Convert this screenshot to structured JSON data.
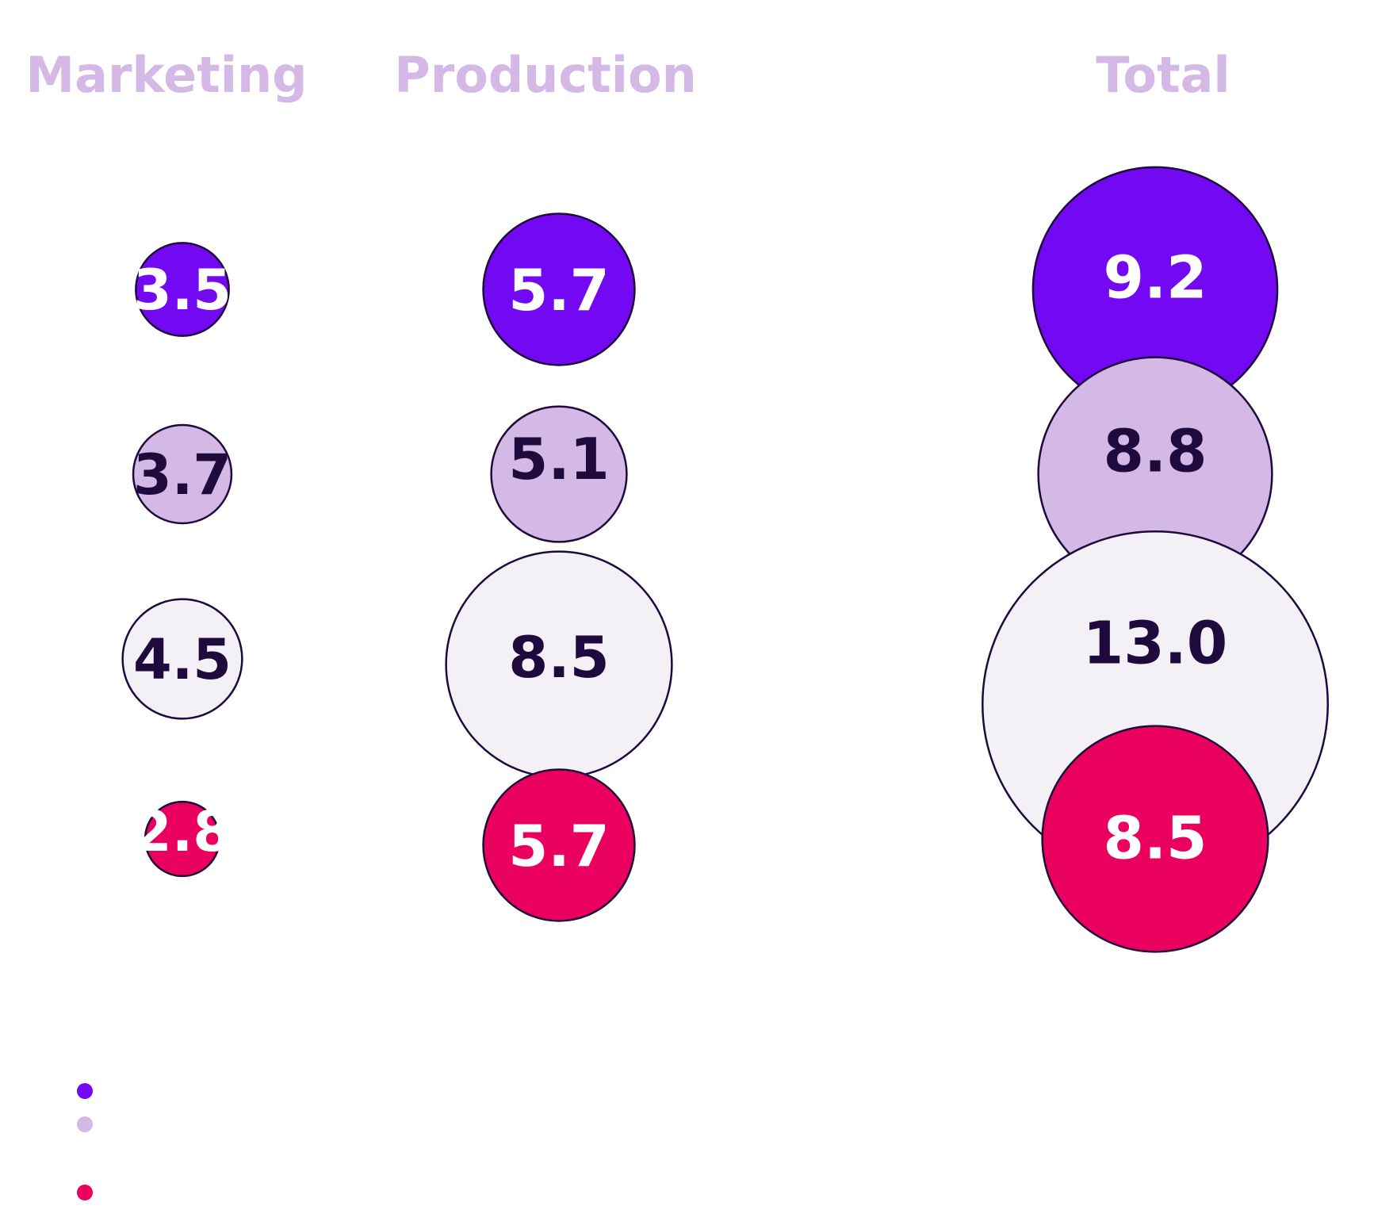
{
  "chart_data": {
    "type": "bubble",
    "groups": [
      "Marketing",
      "Production",
      "Total"
    ],
    "series": [
      {
        "color": "#7209F2",
        "values": [
          3.5,
          5.7,
          9.2
        ]
      },
      {
        "color": "#D4B8E6",
        "values": [
          3.7,
          5.1,
          8.8
        ]
      },
      {
        "color": "#F3F1F6",
        "values": [
          4.5,
          8.5,
          13.0
        ]
      },
      {
        "color": "#EA005E",
        "values": [
          2.8,
          5.7,
          8.5
        ]
      }
    ],
    "value_labels": [
      [
        "3.5",
        "5.7",
        "9.2"
      ],
      [
        "3.7",
        "5.1",
        "8.8"
      ],
      [
        "4.5",
        "8.5",
        "13.0"
      ],
      [
        "2.8",
        "5.7",
        "8.5"
      ]
    ],
    "title_color": "#D4B8E6",
    "outline_color": "#1E0A3C",
    "label_dark_color": "#1E0A3C",
    "label_light_color": "#FFFFFF",
    "legend": {
      "placement": "bottom-left",
      "entries": [
        {
          "color": "#7209F2"
        },
        {
          "color": "#D4B8E6"
        },
        {
          "color": "#EA005E"
        }
      ]
    }
  }
}
